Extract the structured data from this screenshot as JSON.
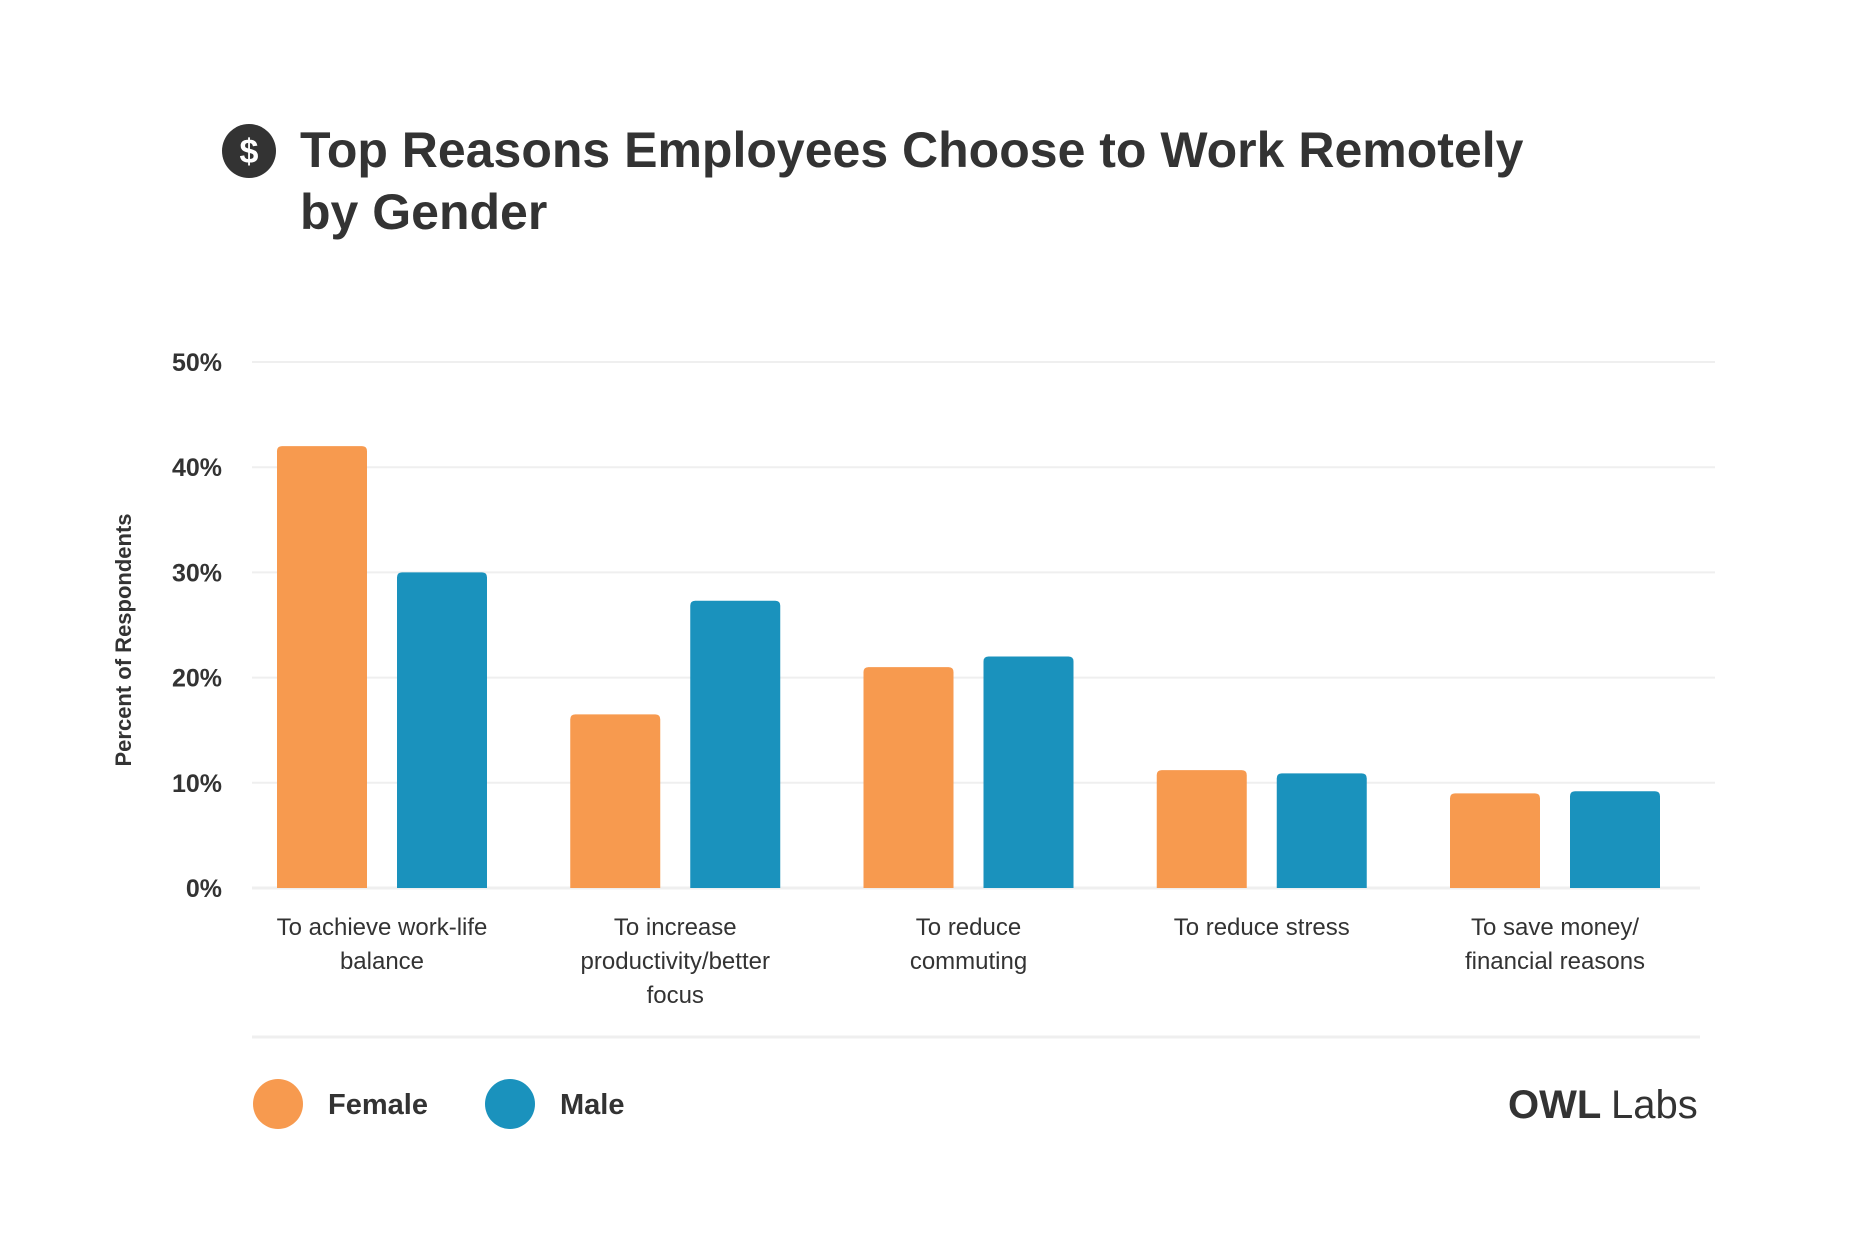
{
  "chart_data": {
    "type": "bar",
    "title": "Top Reasons Employees Choose to Work Remotely by Gender",
    "title_lines": [
      "Top Reasons Employees Choose to Work Remotely",
      "by Gender"
    ],
    "title_icon": "dollar-circle-icon",
    "xlabel": "",
    "ylabel": "Percent of Respondents",
    "ylim": [
      0,
      50
    ],
    "yticks": [
      0,
      10,
      20,
      30,
      40,
      50
    ],
    "ytick_labels": [
      "0%",
      "10%",
      "20%",
      "30%",
      "40%",
      "50%"
    ],
    "grid": true,
    "categories": [
      "To achieve work-life balance",
      "To increase productivity/better focus",
      "To reduce commuting",
      "To reduce stress",
      "To save money/ financial reasons"
    ],
    "category_label_lines": [
      [
        "To achieve work-life",
        "balance"
      ],
      [
        "To increase",
        "productivity/better",
        "focus"
      ],
      [
        "To reduce",
        "commuting"
      ],
      [
        "To reduce stress"
      ],
      [
        "To save money/",
        "financial reasons"
      ]
    ],
    "series": [
      {
        "name": "Female",
        "color": "#F79A4F",
        "values": [
          42,
          16.5,
          21,
          11.2,
          9
        ]
      },
      {
        "name": "Male",
        "color": "#1A92BD",
        "values": [
          30,
          27.3,
          22,
          10.9,
          9.2
        ]
      }
    ],
    "legend_position": "bottom-left"
  },
  "brand": {
    "logo_owl": "OWL",
    "logo_labs": "Labs",
    "text_color": "#333333",
    "grid_color": "#EFEFEF"
  }
}
